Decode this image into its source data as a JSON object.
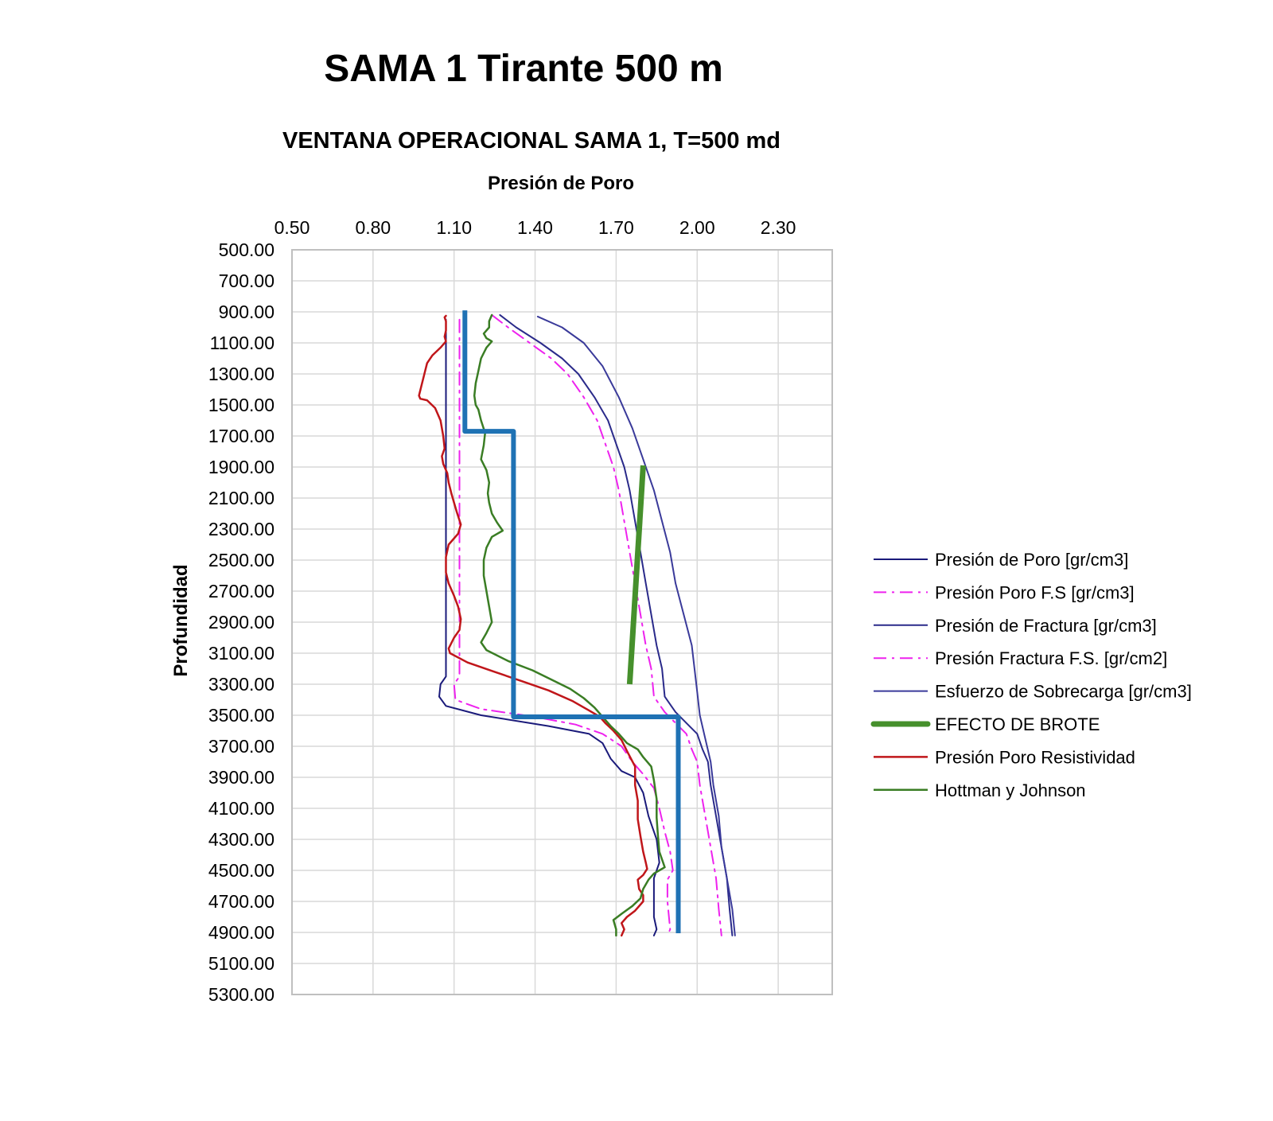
{
  "page": {
    "main_title": "SAMA 1 Tirante 500 m"
  },
  "chart_data": {
    "type": "line",
    "title": "VENTANA OPERACIONAL SAMA 1, T=500 md",
    "xlabel": "Presión de Poro",
    "ylabel": "Profundidad",
    "xlim": [
      0.5,
      2.5
    ],
    "ylim": [
      500,
      5300
    ],
    "y_inverted": true,
    "x_axis_position": "top",
    "x_ticks": [
      0.5,
      0.8,
      1.1,
      1.4,
      1.7,
      2.0,
      2.3
    ],
    "x_tick_labels": [
      "0.50",
      "0.80",
      "1.10",
      "1.40",
      "1.70",
      "2.00",
      "2.30"
    ],
    "y_ticks": [
      500,
      700,
      900,
      1100,
      1300,
      1500,
      1700,
      1900,
      2100,
      2300,
      2500,
      2700,
      2900,
      3100,
      3300,
      3500,
      3700,
      3900,
      4100,
      4300,
      4500,
      4700,
      4900,
      5100,
      5300
    ],
    "y_tick_labels": [
      "500.00",
      "700.00",
      "900.00",
      "1100.00",
      "1300.00",
      "1500.00",
      "1700.00",
      "1900.00",
      "2100.00",
      "2300.00",
      "2500.00",
      "2700.00",
      "2900.00",
      "3100.00",
      "3300.00",
      "3500.00",
      "3700.00",
      "3900.00",
      "4100.00",
      "4300.00",
      "4500.00",
      "4700.00",
      "4900.00",
      "5100.00",
      "5300.00"
    ],
    "grid": true,
    "legend_position": "right",
    "series": [
      {
        "name": "Presión de Poro [gr/cm3]",
        "color": "#1a1a7a",
        "style": "solid",
        "width": 2,
        "points": [
          [
            1.07,
            950
          ],
          [
            1.07,
            1100
          ],
          [
            1.07,
            1300
          ],
          [
            1.07,
            1500
          ],
          [
            1.07,
            1700
          ],
          [
            1.07,
            1900
          ],
          [
            1.07,
            2100
          ],
          [
            1.07,
            2300
          ],
          [
            1.07,
            2500
          ],
          [
            1.07,
            2700
          ],
          [
            1.07,
            2900
          ],
          [
            1.07,
            3100
          ],
          [
            1.07,
            3250
          ],
          [
            1.05,
            3300
          ],
          [
            1.045,
            3380
          ],
          [
            1.07,
            3440
          ],
          [
            1.2,
            3500
          ],
          [
            1.45,
            3570
          ],
          [
            1.6,
            3620
          ],
          [
            1.65,
            3680
          ],
          [
            1.68,
            3780
          ],
          [
            1.72,
            3860
          ],
          [
            1.77,
            3900
          ],
          [
            1.8,
            4000
          ],
          [
            1.82,
            4150
          ],
          [
            1.85,
            4300
          ],
          [
            1.86,
            4450
          ],
          [
            1.84,
            4550
          ],
          [
            1.84,
            4700
          ],
          [
            1.84,
            4800
          ],
          [
            1.85,
            4880
          ],
          [
            1.84,
            4920
          ]
        ]
      },
      {
        "name": "Presión Poro F.S [gr/cm3]",
        "color": "#ee22ee",
        "style": "dashdot",
        "width": 2,
        "points": [
          [
            1.12,
            950
          ],
          [
            1.12,
            1100
          ],
          [
            1.12,
            1300
          ],
          [
            1.12,
            1500
          ],
          [
            1.12,
            1700
          ],
          [
            1.12,
            1900
          ],
          [
            1.12,
            2100
          ],
          [
            1.12,
            2300
          ],
          [
            1.12,
            2500
          ],
          [
            1.12,
            2700
          ],
          [
            1.12,
            2900
          ],
          [
            1.12,
            3100
          ],
          [
            1.12,
            3250
          ],
          [
            1.1,
            3300
          ],
          [
            1.105,
            3400
          ],
          [
            1.2,
            3460
          ],
          [
            1.4,
            3510
          ],
          [
            1.55,
            3560
          ],
          [
            1.65,
            3620
          ],
          [
            1.72,
            3700
          ],
          [
            1.76,
            3800
          ],
          [
            1.8,
            3880
          ],
          [
            1.84,
            3970
          ],
          [
            1.86,
            4100
          ],
          [
            1.88,
            4250
          ],
          [
            1.9,
            4380
          ],
          [
            1.91,
            4500
          ],
          [
            1.89,
            4560
          ],
          [
            1.89,
            4700
          ],
          [
            1.9,
            4880
          ],
          [
            1.89,
            4920
          ]
        ]
      },
      {
        "name": "Presión de Fractura [gr/cm3]",
        "color": "#2a2a8a",
        "style": "solid",
        "width": 2,
        "points": [
          [
            1.27,
            920
          ],
          [
            1.33,
            1000
          ],
          [
            1.42,
            1100
          ],
          [
            1.5,
            1200
          ],
          [
            1.56,
            1300
          ],
          [
            1.62,
            1450
          ],
          [
            1.67,
            1600
          ],
          [
            1.7,
            1750
          ],
          [
            1.73,
            1900
          ],
          [
            1.75,
            2050
          ],
          [
            1.77,
            2250
          ],
          [
            1.79,
            2450
          ],
          [
            1.81,
            2650
          ],
          [
            1.83,
            2850
          ],
          [
            1.85,
            3050
          ],
          [
            1.87,
            3200
          ],
          [
            1.88,
            3380
          ],
          [
            1.92,
            3480
          ],
          [
            1.96,
            3550
          ],
          [
            2.0,
            3620
          ],
          [
            2.02,
            3720
          ],
          [
            2.04,
            3800
          ],
          [
            2.05,
            3950
          ],
          [
            2.07,
            4150
          ],
          [
            2.09,
            4350
          ],
          [
            2.11,
            4550
          ],
          [
            2.12,
            4750
          ],
          [
            2.13,
            4920
          ]
        ]
      },
      {
        "name": "Presión Fractura F.S. [gr/cm2]",
        "color": "#ee22ee",
        "style": "dashdot",
        "width": 2,
        "points": [
          [
            1.24,
            920
          ],
          [
            1.3,
            1000
          ],
          [
            1.38,
            1100
          ],
          [
            1.46,
            1200
          ],
          [
            1.52,
            1300
          ],
          [
            1.58,
            1450
          ],
          [
            1.63,
            1600
          ],
          [
            1.66,
            1750
          ],
          [
            1.69,
            1900
          ],
          [
            1.71,
            2050
          ],
          [
            1.73,
            2250
          ],
          [
            1.75,
            2450
          ],
          [
            1.77,
            2650
          ],
          [
            1.79,
            2850
          ],
          [
            1.81,
            3050
          ],
          [
            1.83,
            3200
          ],
          [
            1.84,
            3380
          ],
          [
            1.88,
            3480
          ],
          [
            1.92,
            3550
          ],
          [
            1.96,
            3620
          ],
          [
            1.98,
            3720
          ],
          [
            2.0,
            3800
          ],
          [
            2.01,
            3950
          ],
          [
            2.03,
            4150
          ],
          [
            2.05,
            4350
          ],
          [
            2.07,
            4550
          ],
          [
            2.08,
            4750
          ],
          [
            2.09,
            4920
          ]
        ]
      },
      {
        "name": "Esfuerzo de Sobrecarga [gr/cm3]",
        "color": "#3a3a9a",
        "style": "solid",
        "width": 2,
        "points": [
          [
            1.41,
            930
          ],
          [
            1.5,
            1000
          ],
          [
            1.58,
            1100
          ],
          [
            1.65,
            1250
          ],
          [
            1.71,
            1450
          ],
          [
            1.76,
            1650
          ],
          [
            1.8,
            1850
          ],
          [
            1.84,
            2050
          ],
          [
            1.87,
            2250
          ],
          [
            1.9,
            2450
          ],
          [
            1.92,
            2650
          ],
          [
            1.95,
            2850
          ],
          [
            1.98,
            3050
          ],
          [
            1.99,
            3200
          ],
          [
            2.0,
            3350
          ],
          [
            2.01,
            3500
          ],
          [
            2.03,
            3650
          ],
          [
            2.05,
            3800
          ],
          [
            2.06,
            3950
          ],
          [
            2.08,
            4150
          ],
          [
            2.09,
            4350
          ],
          [
            2.11,
            4550
          ],
          [
            2.13,
            4750
          ],
          [
            2.14,
            4920
          ]
        ]
      },
      {
        "name": "EFECTO DE BROTE",
        "color": "#46902c",
        "style": "solid",
        "width": 7,
        "points": [
          [
            1.8,
            1890
          ],
          [
            1.75,
            3300
          ]
        ]
      },
      {
        "name": "Presión Poro Resistividad",
        "color": "#c0161a",
        "style": "solid",
        "width": 2.5,
        "points": [
          [
            1.07,
            925
          ],
          [
            1.065,
            935
          ],
          [
            1.07,
            960
          ],
          [
            1.07,
            1020
          ],
          [
            1.065,
            1060
          ],
          [
            1.07,
            1090
          ],
          [
            1.05,
            1130
          ],
          [
            1.02,
            1180
          ],
          [
            1.0,
            1230
          ],
          [
            0.99,
            1300
          ],
          [
            0.98,
            1370
          ],
          [
            0.97,
            1440
          ],
          [
            0.975,
            1460
          ],
          [
            1.0,
            1470
          ],
          [
            1.03,
            1520
          ],
          [
            1.05,
            1600
          ],
          [
            1.06,
            1700
          ],
          [
            1.065,
            1780
          ],
          [
            1.055,
            1830
          ],
          [
            1.06,
            1880
          ],
          [
            1.075,
            1940
          ],
          [
            1.08,
            2000
          ],
          [
            1.09,
            2070
          ],
          [
            1.1,
            2130
          ],
          [
            1.11,
            2190
          ],
          [
            1.125,
            2270
          ],
          [
            1.115,
            2330
          ],
          [
            1.08,
            2400
          ],
          [
            1.07,
            2480
          ],
          [
            1.07,
            2580
          ],
          [
            1.08,
            2650
          ],
          [
            1.1,
            2730
          ],
          [
            1.115,
            2800
          ],
          [
            1.125,
            2880
          ],
          [
            1.12,
            2950
          ],
          [
            1.1,
            3000
          ],
          [
            1.08,
            3070
          ],
          [
            1.085,
            3100
          ],
          [
            1.15,
            3160
          ],
          [
            1.25,
            3220
          ],
          [
            1.35,
            3280
          ],
          [
            1.45,
            3340
          ],
          [
            1.54,
            3410
          ],
          [
            1.6,
            3470
          ],
          [
            1.64,
            3510
          ],
          [
            1.66,
            3550
          ],
          [
            1.69,
            3600
          ],
          [
            1.72,
            3660
          ],
          [
            1.74,
            3730
          ],
          [
            1.77,
            3830
          ],
          [
            1.77,
            3950
          ],
          [
            1.78,
            4050
          ],
          [
            1.78,
            4170
          ],
          [
            1.79,
            4280
          ],
          [
            1.8,
            4380
          ],
          [
            1.81,
            4450
          ],
          [
            1.815,
            4490
          ],
          [
            1.8,
            4530
          ],
          [
            1.78,
            4560
          ],
          [
            1.785,
            4620
          ],
          [
            1.8,
            4660
          ],
          [
            1.8,
            4700
          ],
          [
            1.77,
            4760
          ],
          [
            1.74,
            4800
          ],
          [
            1.72,
            4840
          ],
          [
            1.73,
            4880
          ],
          [
            1.72,
            4920
          ]
        ]
      },
      {
        "name": "Hottman y Johnson",
        "color": "#3a7d24",
        "style": "solid",
        "width": 2.5,
        "points": [
          [
            1.24,
            920
          ],
          [
            1.23,
            960
          ],
          [
            1.23,
            1000
          ],
          [
            1.21,
            1040
          ],
          [
            1.22,
            1070
          ],
          [
            1.24,
            1090
          ],
          [
            1.22,
            1130
          ],
          [
            1.2,
            1200
          ],
          [
            1.19,
            1280
          ],
          [
            1.18,
            1360
          ],
          [
            1.175,
            1440
          ],
          [
            1.18,
            1500
          ],
          [
            1.19,
            1530
          ],
          [
            1.2,
            1600
          ],
          [
            1.215,
            1680
          ],
          [
            1.21,
            1760
          ],
          [
            1.2,
            1850
          ],
          [
            1.22,
            1920
          ],
          [
            1.23,
            2000
          ],
          [
            1.225,
            2070
          ],
          [
            1.23,
            2130
          ],
          [
            1.24,
            2200
          ],
          [
            1.26,
            2260
          ],
          [
            1.28,
            2310
          ],
          [
            1.24,
            2350
          ],
          [
            1.22,
            2420
          ],
          [
            1.21,
            2500
          ],
          [
            1.21,
            2600
          ],
          [
            1.22,
            2700
          ],
          [
            1.23,
            2800
          ],
          [
            1.24,
            2900
          ],
          [
            1.22,
            2970
          ],
          [
            1.2,
            3030
          ],
          [
            1.22,
            3080
          ],
          [
            1.3,
            3150
          ],
          [
            1.39,
            3210
          ],
          [
            1.46,
            3270
          ],
          [
            1.53,
            3330
          ],
          [
            1.58,
            3390
          ],
          [
            1.62,
            3450
          ],
          [
            1.65,
            3510
          ],
          [
            1.68,
            3570
          ],
          [
            1.71,
            3620
          ],
          [
            1.74,
            3680
          ],
          [
            1.78,
            3720
          ],
          [
            1.8,
            3770
          ],
          [
            1.83,
            3830
          ],
          [
            1.84,
            3920
          ],
          [
            1.85,
            4040
          ],
          [
            1.85,
            4160
          ],
          [
            1.855,
            4280
          ],
          [
            1.86,
            4380
          ],
          [
            1.87,
            4430
          ],
          [
            1.88,
            4480
          ],
          [
            1.86,
            4500
          ],
          [
            1.84,
            4520
          ],
          [
            1.82,
            4560
          ],
          [
            1.8,
            4620
          ],
          [
            1.79,
            4680
          ],
          [
            1.76,
            4730
          ],
          [
            1.72,
            4780
          ],
          [
            1.69,
            4820
          ],
          [
            1.7,
            4880
          ],
          [
            1.7,
            4920
          ]
        ]
      },
      {
        "name": "Ventana operacional",
        "legend": false,
        "color": "#1f72b4",
        "style": "solid",
        "width": 6,
        "points": [
          [
            1.14,
            890
          ],
          [
            1.14,
            1670
          ],
          [
            1.32,
            1670
          ],
          [
            1.32,
            3510
          ],
          [
            1.93,
            3510
          ],
          [
            1.93,
            4905
          ]
        ]
      }
    ]
  }
}
